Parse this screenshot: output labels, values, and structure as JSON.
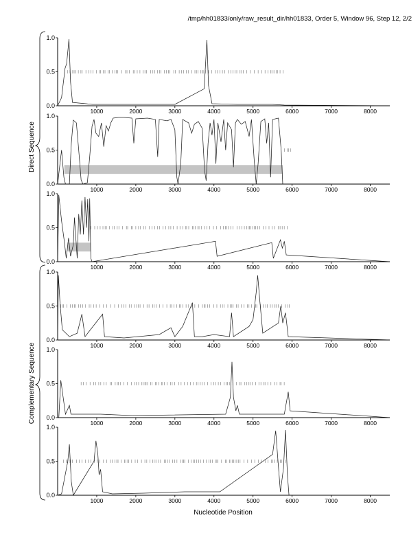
{
  "header": {
    "title": "/tmp/hh01833/only/raw_result_dir/hh01833, Order 5, Window 96, Step 12, 2/2"
  },
  "groups": {
    "direct": "Direct Sequence",
    "complementary": "Complementary Sequence"
  },
  "axes": {
    "xlabel": "Nucleotide Position",
    "xticks": [
      "1000",
      "2000",
      "3000",
      "4000",
      "5000",
      "6000",
      "7000",
      "8000"
    ],
    "yticks": [
      "0.0",
      "0.5",
      "1.0"
    ]
  },
  "chart_data": {
    "type": "line",
    "title": "/tmp/hh01833/only/raw_result_dir/hh01833, Order 5, Window 96, Step 12, 2/2",
    "xlabel": "Nucleotide Position",
    "ylabel": "",
    "xlim": [
      0,
      8500
    ],
    "ylim": [
      0,
      1.0
    ],
    "xticks": [
      1000,
      2000,
      3000,
      4000,
      5000,
      6000,
      7000,
      8000
    ],
    "yticks": [
      0.0,
      0.5,
      1.0
    ],
    "grid": false,
    "panels": [
      {
        "group": "Direct Sequence",
        "peaks": [
          [
            100,
            0.12
          ],
          [
            190,
            0.55
          ],
          [
            230,
            0.62
          ],
          [
            290,
            0.98
          ],
          [
            330,
            0.35
          ],
          [
            380,
            0.05
          ],
          [
            900,
            0.02
          ],
          [
            1900,
            0.02
          ],
          [
            3000,
            0.02
          ],
          [
            3750,
            0.25
          ],
          [
            3820,
            0.97
          ],
          [
            3860,
            0.3
          ],
          [
            3950,
            0.03
          ],
          [
            4600,
            0.02
          ],
          [
            5500,
            0.02
          ],
          [
            5800,
            0.01
          ]
        ],
        "ticks_level": 0.5,
        "ticks_range": [
          250,
          5800
        ],
        "highlight": null
      },
      {
        "group": "Direct Sequence",
        "peaks": [
          [
            100,
            0.5
          ],
          [
            160,
            0.1
          ],
          [
            200,
            0.0
          ],
          [
            300,
            0.0
          ],
          [
            350,
            0.6
          ],
          [
            400,
            0.94
          ],
          [
            480,
            0.9
          ],
          [
            540,
            0.5
          ],
          [
            600,
            0.06
          ],
          [
            650,
            0.0
          ],
          [
            760,
            0.02
          ],
          [
            820,
            0.4
          ],
          [
            880,
            0.85
          ],
          [
            930,
            0.95
          ],
          [
            980,
            0.75
          ],
          [
            1050,
            0.7
          ],
          [
            1120,
            0.9
          ],
          [
            1180,
            0.55
          ],
          [
            1240,
            0.86
          ],
          [
            1300,
            0.78
          ],
          [
            1360,
            0.9
          ],
          [
            1420,
            0.97
          ],
          [
            1550,
            0.98
          ],
          [
            1700,
            0.98
          ],
          [
            1900,
            0.97
          ],
          [
            1950,
            0.6
          ],
          [
            2000,
            0.96
          ],
          [
            2300,
            0.97
          ],
          [
            2500,
            0.95
          ],
          [
            2560,
            0.4
          ],
          [
            2600,
            0.95
          ],
          [
            2800,
            0.93
          ],
          [
            2900,
            0.95
          ],
          [
            3000,
            0.8
          ],
          [
            3050,
            0.1
          ],
          [
            3080,
            0.0
          ],
          [
            3150,
            0.3
          ],
          [
            3200,
            0.95
          ],
          [
            3350,
            0.9
          ],
          [
            3430,
            0.75
          ],
          [
            3500,
            0.88
          ],
          [
            3600,
            0.92
          ],
          [
            3700,
            0.82
          ],
          [
            3760,
            0.2
          ],
          [
            3800,
            0.05
          ],
          [
            3850,
            0.6
          ],
          [
            3900,
            0.9
          ],
          [
            3950,
            0.72
          ],
          [
            4000,
            0.95
          ],
          [
            4050,
            0.3
          ],
          [
            4100,
            0.9
          ],
          [
            4180,
            0.62
          ],
          [
            4250,
            0.95
          ],
          [
            4300,
            0.5
          ],
          [
            4350,
            0.9
          ],
          [
            4450,
            0.8
          ],
          [
            4500,
            0.25
          ],
          [
            4550,
            0.9
          ],
          [
            4600,
            0.95
          ],
          [
            4700,
            0.88
          ],
          [
            4800,
            0.92
          ],
          [
            4900,
            0.7
          ],
          [
            4960,
            0.95
          ],
          [
            5030,
            0.35
          ],
          [
            5080,
            0.0
          ],
          [
            5130,
            0.3
          ],
          [
            5200,
            0.92
          ],
          [
            5300,
            0.96
          ],
          [
            5350,
            0.6
          ],
          [
            5400,
            0.9
          ],
          [
            5450,
            0.1
          ],
          [
            5500,
            0.95
          ],
          [
            5650,
            0.97
          ],
          [
            5720,
            0.5
          ],
          [
            5760,
            0.0
          ]
        ],
        "ticks_level": 0.5,
        "ticks_range": [
          5800,
          5990
        ],
        "highlight": {
          "x": [
            170,
            5760
          ],
          "y": [
            0.15,
            0.28
          ]
        }
      },
      {
        "group": "Direct Sequence",
        "peaks": [
          [
            30,
            0.98
          ],
          [
            100,
            0.6
          ],
          [
            170,
            0.3
          ],
          [
            220,
            0.05
          ],
          [
            280,
            0.35
          ],
          [
            330,
            0.08
          ],
          [
            400,
            0.25
          ],
          [
            430,
            0.65
          ],
          [
            470,
            0.3
          ],
          [
            500,
            0.05
          ],
          [
            540,
            0.7
          ],
          [
            580,
            0.4
          ],
          [
            620,
            0.9
          ],
          [
            660,
            0.4
          ],
          [
            700,
            0.95
          ],
          [
            740,
            0.5
          ],
          [
            770,
            0.92
          ],
          [
            800,
            0.3
          ],
          [
            820,
            0.93
          ],
          [
            850,
            0.05
          ],
          [
            880,
            0.0
          ],
          [
            4040,
            0.3
          ],
          [
            4080,
            0.08
          ],
          [
            5480,
            0.28
          ],
          [
            5520,
            0.05
          ],
          [
            5700,
            0.32
          ],
          [
            5750,
            0.2
          ],
          [
            5800,
            0.3
          ],
          [
            5850,
            0.1
          ]
        ],
        "ticks_level": 0.5,
        "ticks_range": [
          850,
          5950
        ],
        "highlight": {
          "x": [
            250,
            850
          ],
          "y": [
            0.15,
            0.28
          ]
        }
      },
      {
        "group": "Complementary Sequence",
        "peaks": [
          [
            20,
            0.95
          ],
          [
            60,
            0.55
          ],
          [
            120,
            0.15
          ],
          [
            300,
            0.05
          ],
          [
            500,
            0.1
          ],
          [
            620,
            0.38
          ],
          [
            700,
            0.05
          ],
          [
            1150,
            0.38
          ],
          [
            1200,
            0.05
          ],
          [
            1700,
            0.03
          ],
          [
            2600,
            0.08
          ],
          [
            2900,
            0.18
          ],
          [
            3000,
            0.05
          ],
          [
            3200,
            0.2
          ],
          [
            3450,
            0.55
          ],
          [
            3500,
            0.05
          ],
          [
            3700,
            0.05
          ],
          [
            4000,
            0.08
          ],
          [
            4400,
            0.05
          ],
          [
            4450,
            0.4
          ],
          [
            4500,
            0.05
          ],
          [
            4900,
            0.2
          ],
          [
            5000,
            0.3
          ],
          [
            5080,
            0.7
          ],
          [
            5120,
            0.95
          ],
          [
            5170,
            0.6
          ],
          [
            5250,
            0.1
          ],
          [
            5650,
            0.25
          ],
          [
            5710,
            0.5
          ],
          [
            5760,
            0.25
          ],
          [
            5830,
            0.4
          ],
          [
            5900,
            0.05
          ]
        ],
        "ticks_level": 0.5,
        "ticks_range": [
          80,
          5980
        ],
        "highlight": null
      },
      {
        "group": "Complementary Sequence",
        "peaks": [
          [
            30,
            0.0
          ],
          [
            80,
            0.55
          ],
          [
            140,
            0.3
          ],
          [
            200,
            0.05
          ],
          [
            300,
            0.18
          ],
          [
            340,
            0.05
          ],
          [
            1100,
            0.05
          ],
          [
            1900,
            0.03
          ],
          [
            4300,
            0.05
          ],
          [
            4420,
            0.3
          ],
          [
            4460,
            0.82
          ],
          [
            4500,
            0.3
          ],
          [
            4560,
            0.1
          ],
          [
            4600,
            0.18
          ],
          [
            4650,
            0.05
          ],
          [
            5800,
            0.05
          ],
          [
            5900,
            0.38
          ],
          [
            5950,
            0.1
          ]
        ],
        "ticks_level": 0.5,
        "ticks_range": [
          600,
          5900
        ],
        "highlight": null
      },
      {
        "group": "Complementary Sequence",
        "peaks": [
          [
            100,
            0.02
          ],
          [
            260,
            0.5
          ],
          [
            300,
            0.75
          ],
          [
            350,
            0.2
          ],
          [
            400,
            0.0
          ],
          [
            930,
            0.5
          ],
          [
            980,
            0.8
          ],
          [
            1030,
            0.6
          ],
          [
            1060,
            0.3
          ],
          [
            1100,
            0.38
          ],
          [
            1150,
            0.05
          ],
          [
            1400,
            0.02
          ],
          [
            2200,
            0.03
          ],
          [
            3250,
            0.05
          ],
          [
            4150,
            0.05
          ],
          [
            5500,
            0.6
          ],
          [
            5580,
            0.95
          ],
          [
            5640,
            0.5
          ],
          [
            5700,
            0.05
          ],
          [
            5780,
            0.4
          ],
          [
            5830,
            0.96
          ],
          [
            5880,
            0.3
          ],
          [
            5920,
            0.0
          ]
        ],
        "ticks_level": 0.5,
        "ticks_range": [
          150,
          5850
        ],
        "highlight": null
      }
    ]
  }
}
